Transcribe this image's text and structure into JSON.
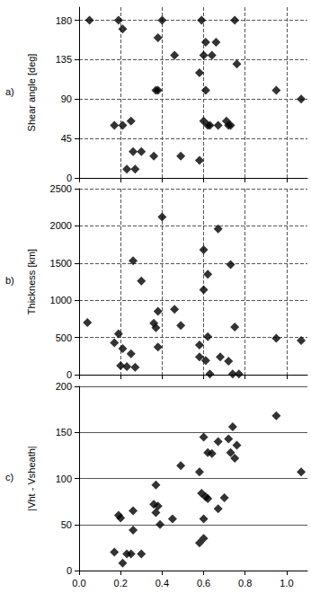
{
  "chart_data": [
    {
      "type": "scatter",
      "annotation": "a)",
      "y_label": "Shear angle [deg]",
      "color": "#000000",
      "marker": "diamond",
      "grid": true,
      "tick_labels": "y",
      "xlim": [
        0,
        1.1
      ],
      "xticks": [
        {
          "value": 0,
          "label": "0.0"
        },
        0.2,
        0.4,
        0.6,
        0.8,
        {
          "value": 1,
          "label": "1.0"
        }
      ],
      "ylim": [
        0,
        195
      ],
      "yticks": [
        0,
        45,
        90,
        135,
        180
      ],
      "x": [
        0.05,
        0.19,
        0.21,
        0.17,
        0.21,
        0.25,
        0.23,
        0.26,
        0.27,
        0.3,
        0.36,
        0.37,
        0.38,
        0.38,
        0.4,
        0.46,
        0.49,
        0.58,
        0.58,
        0.59,
        0.6,
        0.6,
        0.61,
        0.61,
        0.62,
        0.63,
        0.64,
        0.66,
        0.67,
        0.71,
        0.72,
        0.73,
        0.75,
        0.76,
        0.95,
        1.07
      ],
      "values": [
        180,
        180,
        170,
        60,
        60,
        65,
        10,
        30,
        10,
        30,
        25,
        100,
        100,
        160,
        180,
        140,
        25,
        20,
        120,
        180,
        140,
        65,
        155,
        100,
        60,
        60,
        140,
        155,
        60,
        65,
        60,
        60,
        180,
        130,
        100,
        90
      ]
    },
    {
      "type": "scatter",
      "annotation": "b)",
      "y_label": "Thickness [km]",
      "color": "#000000",
      "marker": "diamond",
      "grid": true,
      "tick_labels": "y",
      "xlim": [
        0,
        1.1
      ],
      "xticks": [
        {
          "value": 0,
          "label": "0.0"
        },
        0.2,
        0.4,
        0.6,
        0.8,
        {
          "value": 1,
          "label": "1.0"
        }
      ],
      "ylim": [
        0,
        2500
      ],
      "yticks": [
        0,
        500,
        1000,
        1500,
        2000,
        2500
      ],
      "x": [
        0.04,
        0.17,
        0.19,
        0.2,
        0.21,
        0.23,
        0.25,
        0.26,
        0.27,
        0.3,
        0.36,
        0.37,
        0.38,
        0.38,
        0.4,
        0.46,
        0.49,
        0.58,
        0.58,
        0.6,
        0.6,
        0.61,
        0.62,
        0.62,
        0.63,
        0.67,
        0.68,
        0.72,
        0.73,
        0.74,
        0.75,
        0.77,
        0.95,
        1.07
      ],
      "values": [
        700,
        430,
        550,
        120,
        350,
        110,
        280,
        1530,
        100,
        1260,
        690,
        630,
        370,
        850,
        2120,
        880,
        660,
        400,
        240,
        1140,
        1680,
        190,
        510,
        1350,
        10,
        1960,
        240,
        180,
        1480,
        10,
        640,
        10,
        490,
        460
      ]
    },
    {
      "type": "scatter",
      "annotation": "c)",
      "y_label": "|Vht - Vsheath|",
      "color": "#000000",
      "marker": "diamond",
      "grid": "y",
      "xlim": [
        0,
        1.1
      ],
      "xticks": [
        {
          "value": 0,
          "label": "0.0"
        },
        0.2,
        0.4,
        0.6,
        0.8,
        {
          "value": 1,
          "label": "1.0"
        }
      ],
      "ylim": [
        0,
        200
      ],
      "yticks": [
        0,
        50,
        100,
        150,
        200
      ],
      "x": [
        0.17,
        0.19,
        0.2,
        0.21,
        0.23,
        0.25,
        0.26,
        0.26,
        0.3,
        0.36,
        0.37,
        0.37,
        0.38,
        0.39,
        0.45,
        0.49,
        0.58,
        0.58,
        0.59,
        0.6,
        0.6,
        0.6,
        0.61,
        0.62,
        0.62,
        0.64,
        0.67,
        0.67,
        0.7,
        0.72,
        0.73,
        0.74,
        0.75,
        0.76,
        0.95,
        1.07
      ],
      "values": [
        20,
        60,
        57,
        8,
        18,
        18,
        44,
        65,
        18,
        72,
        63,
        93,
        70,
        50,
        56,
        114,
        30,
        107,
        84,
        35,
        56,
        145,
        80,
        78,
        128,
        127,
        67,
        140,
        79,
        143,
        128,
        156,
        122,
        136,
        168,
        107
      ]
    }
  ]
}
